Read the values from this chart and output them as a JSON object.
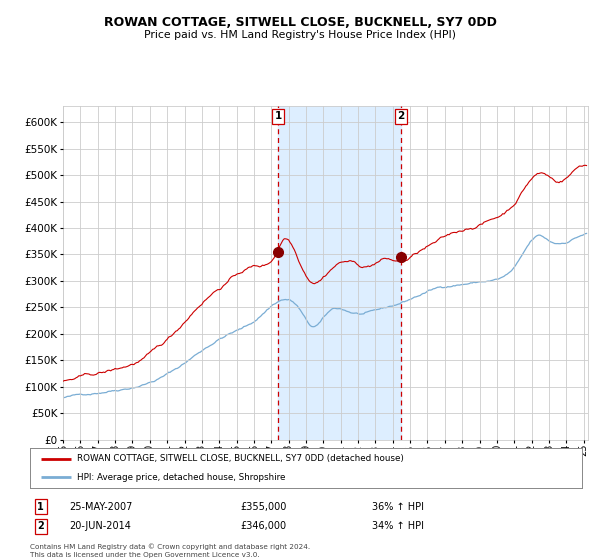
{
  "title": "ROWAN COTTAGE, SITWELL CLOSE, BUCKNELL, SY7 0DD",
  "subtitle": "Price paid vs. HM Land Registry's House Price Index (HPI)",
  "sale1_date": "2007-05-25",
  "sale1_price": 355000,
  "sale2_date": "2014-06-20",
  "sale2_price": 346000,
  "legend_property": "ROWAN COTTAGE, SITWELL CLOSE, BUCKNELL, SY7 0DD (detached house)",
  "legend_hpi": "HPI: Average price, detached house, Shropshire",
  "footer1": "Contains HM Land Registry data © Crown copyright and database right 2024.",
  "footer2": "This data is licensed under the Open Government Licence v3.0.",
  "property_color": "#cc0000",
  "hpi_color": "#7aadd4",
  "shade_color": "#ddeeff",
  "grid_color": "#cccccc",
  "background_color": "#ffffff",
  "ylim": [
    0,
    630000
  ],
  "yticks": [
    0,
    50000,
    100000,
    150000,
    200000,
    250000,
    300000,
    350000,
    400000,
    450000,
    500000,
    550000,
    600000
  ],
  "marker_color": "#880000",
  "xstart": "1995-01-01",
  "xend": "2025-04-01"
}
